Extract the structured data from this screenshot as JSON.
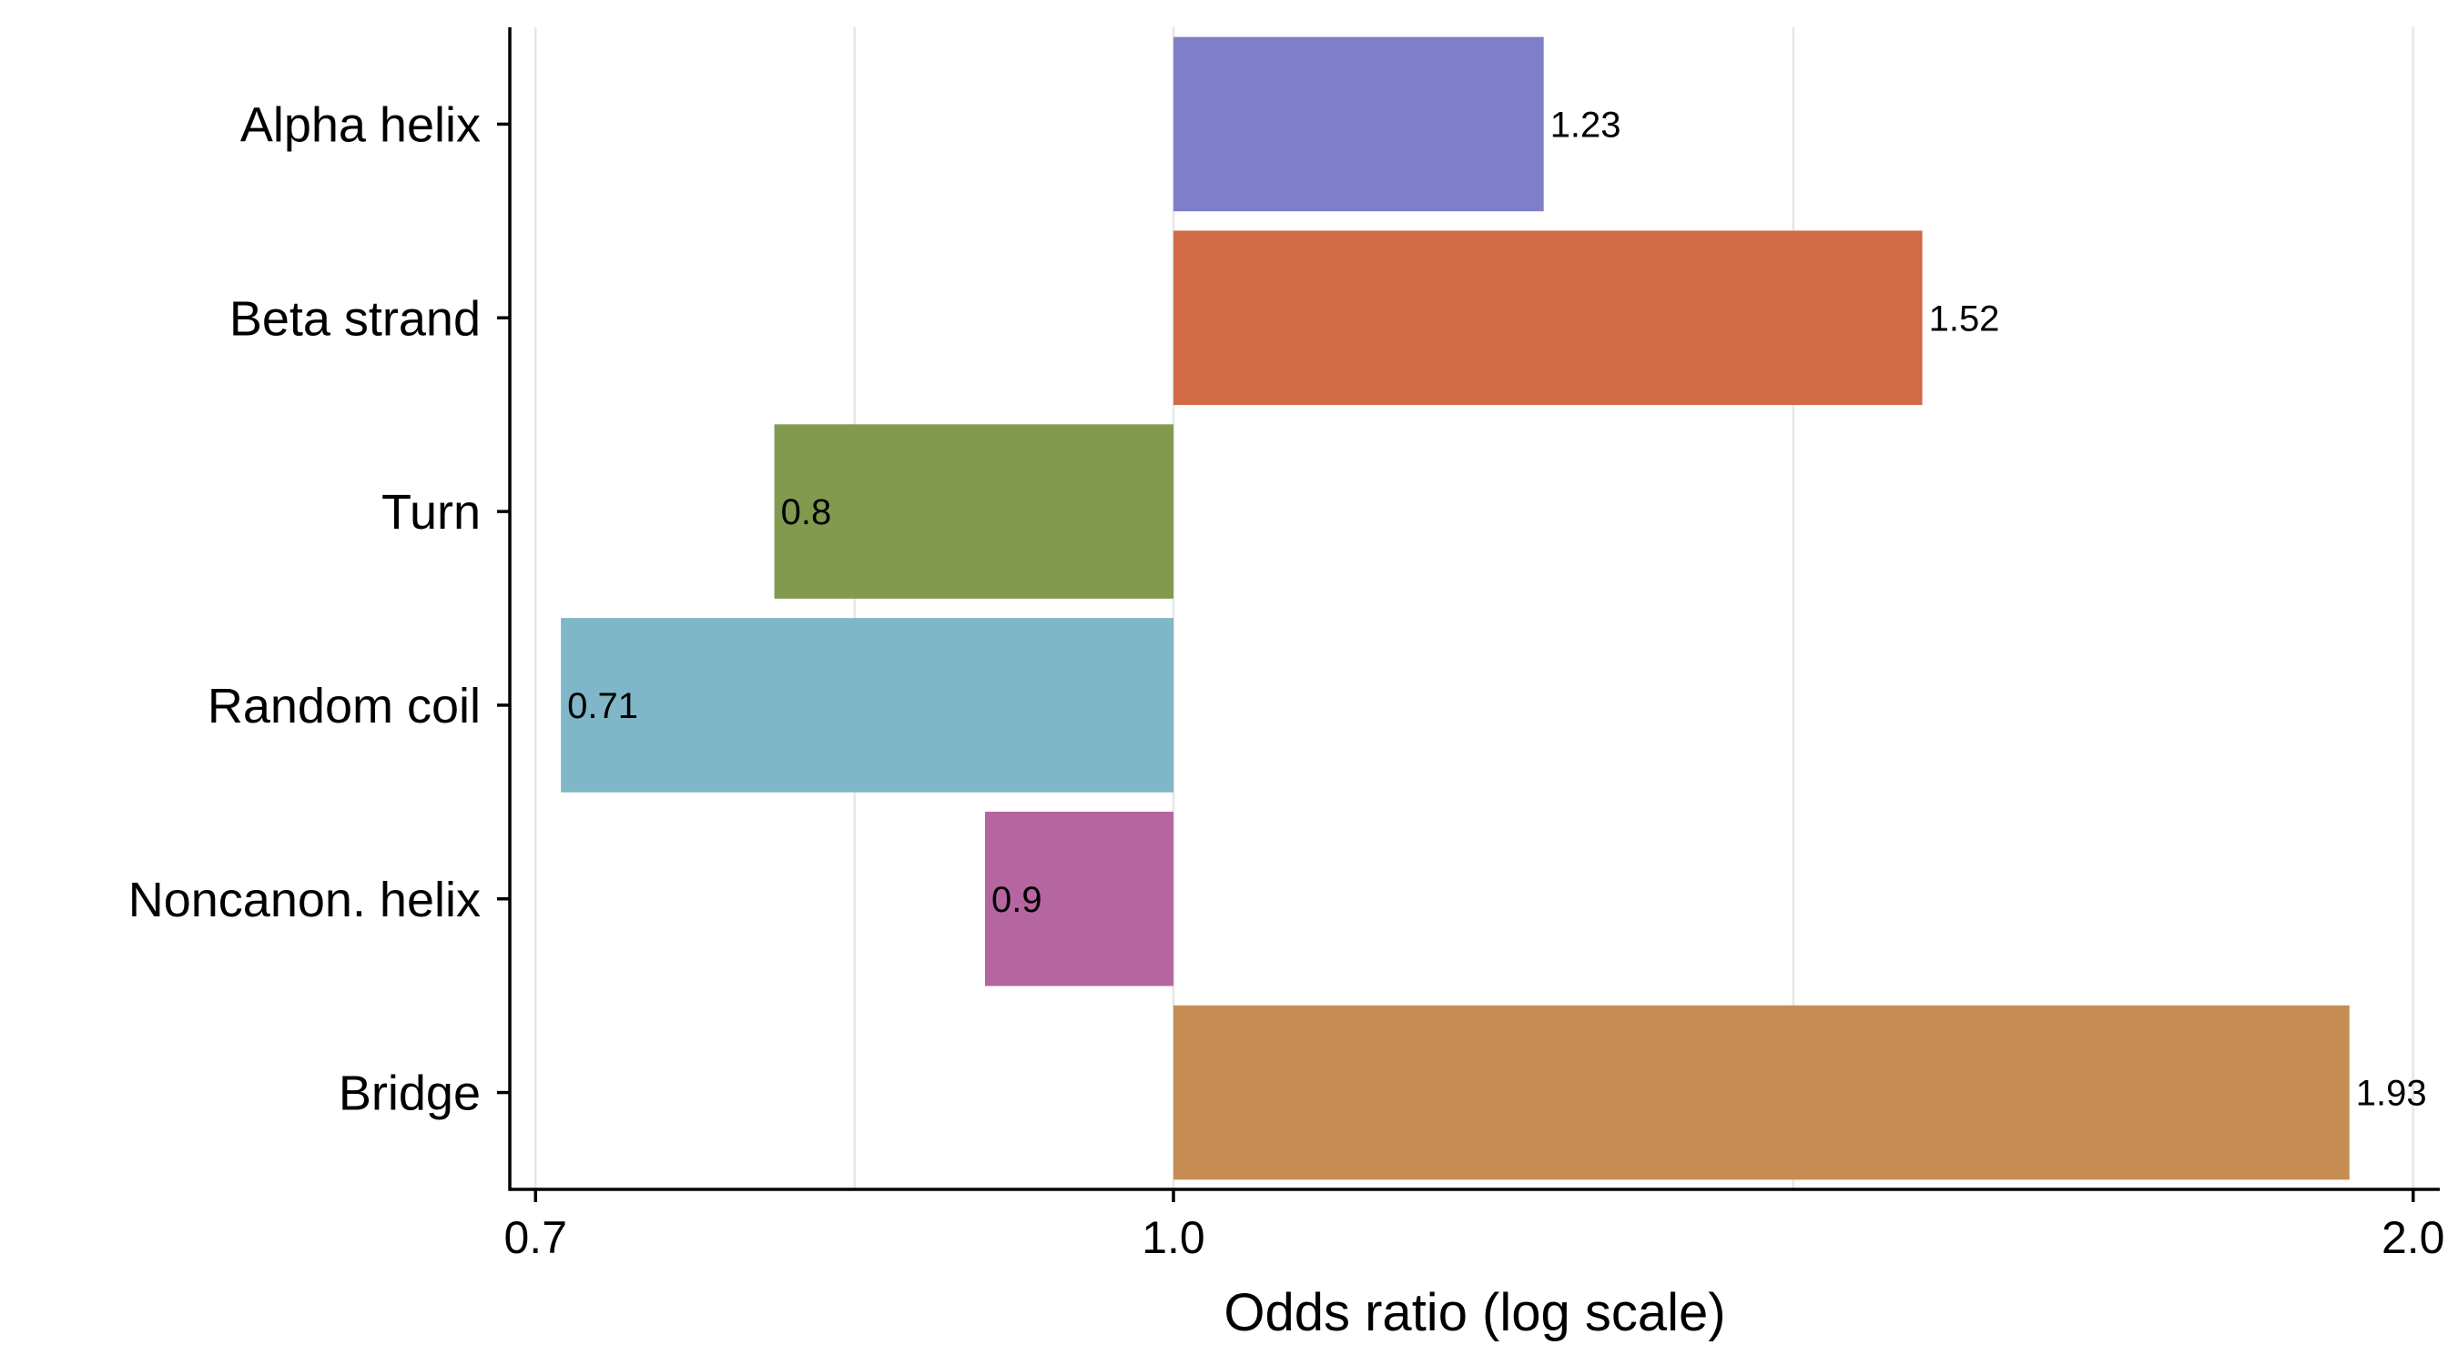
{
  "chart_data": {
    "type": "bar",
    "orientation": "horizontal",
    "baseline": 1.0,
    "x_scale": "log",
    "xlabel": "Odds ratio (log scale)",
    "ylabel": "",
    "title": "",
    "xlim": [
      0.69,
      2.03
    ],
    "xticks": [
      {
        "value": 0.7,
        "label": "0.7"
      },
      {
        "value": 1.0,
        "label": "1.0"
      },
      {
        "value": 2.0,
        "label": "2.0"
      }
    ],
    "minor_grid": [
      0.8367,
      1.4142
    ],
    "grid": true,
    "legend": "none",
    "categories": [
      "Alpha helix",
      "Beta strand",
      "Turn",
      "Random coil",
      "Noncanon. helix",
      "Bridge"
    ],
    "values": [
      1.23,
      1.52,
      0.8,
      0.71,
      0.9,
      1.93
    ],
    "value_labels": [
      "1.23",
      "1.52",
      "0.8",
      "0.71",
      "0.9",
      "1.93"
    ],
    "colors": [
      "#7f7fc9",
      "#d16a47",
      "#829a50",
      "#7fb6c8",
      "#b566a0",
      "#c58d53"
    ]
  }
}
